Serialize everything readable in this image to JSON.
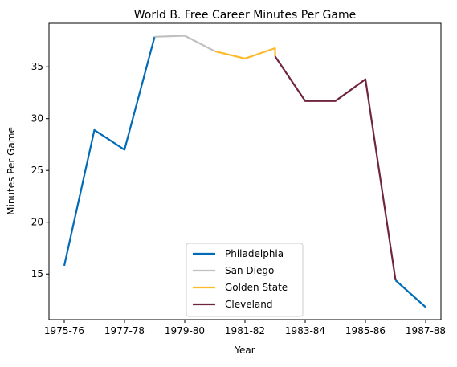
{
  "chart_data": {
    "type": "line",
    "title": "World B. Free Career Minutes Per Game",
    "xlabel": "Year",
    "ylabel": "Minutes Per Game",
    "x": [
      "1975-76",
      "1976-77",
      "1977-78",
      "1978-79",
      "1979-80",
      "1980-81",
      "1981-82",
      "1982-83",
      "1983-84",
      "1984-85",
      "1985-86",
      "1986-87",
      "1987-88"
    ],
    "x_tick_labels": [
      "1975-76",
      "1977-78",
      "1979-80",
      "1981-82",
      "1983-84",
      "1985-86",
      "1987-88"
    ],
    "y_ticks": [
      15,
      20,
      25,
      30,
      35
    ],
    "ylim": [
      10.6,
      39.2
    ],
    "grid": false,
    "legend_position": "lower center",
    "series": [
      {
        "name": "Philadelphia",
        "color": "#006bb6",
        "points": [
          [
            "1975-76",
            15.8
          ],
          [
            "1976-77",
            28.9
          ],
          [
            "1977-78",
            27.0
          ],
          [
            "1978-79",
            37.9
          ]
        ]
      },
      {
        "name": "San Diego",
        "color": "#c0c0c0",
        "points": [
          [
            "1978-79",
            37.9
          ],
          [
            "1979-80",
            38.0
          ],
          [
            "1980-81",
            36.5
          ]
        ]
      },
      {
        "name": "Golden State",
        "color": "#fdb927",
        "points": [
          [
            "1980-81",
            36.5
          ],
          [
            "1981-82",
            35.8
          ],
          [
            "1982-83",
            36.8
          ],
          [
            "1982-83",
            36.0
          ]
        ]
      },
      {
        "name": "Cleveland",
        "color": "#6f263d",
        "points": [
          [
            "1982-83",
            36.0
          ],
          [
            "1983-84",
            31.7
          ],
          [
            "1984-85",
            31.7
          ],
          [
            "1985-86",
            33.8
          ],
          [
            "1986-87",
            14.4
          ]
        ]
      },
      {
        "name": "Philadelphia",
        "color": "#006bb6",
        "legend": false,
        "points": [
          [
            "1986-87",
            14.4
          ],
          [
            "1987-88",
            11.8
          ]
        ]
      }
    ]
  }
}
